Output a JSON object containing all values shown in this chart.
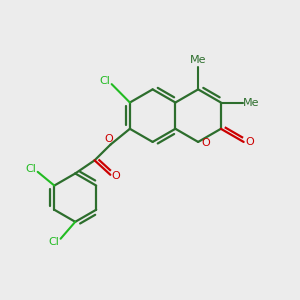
{
  "bg_color": "#ececec",
  "bond_color": "#2d6e2d",
  "o_color": "#cc0000",
  "cl_color": "#22bb22",
  "lw": 1.6,
  "figsize": [
    3.0,
    3.0
  ],
  "dpi": 100,
  "xlim": [
    0.0,
    1.0
  ],
  "ylim": [
    0.0,
    1.0
  ]
}
